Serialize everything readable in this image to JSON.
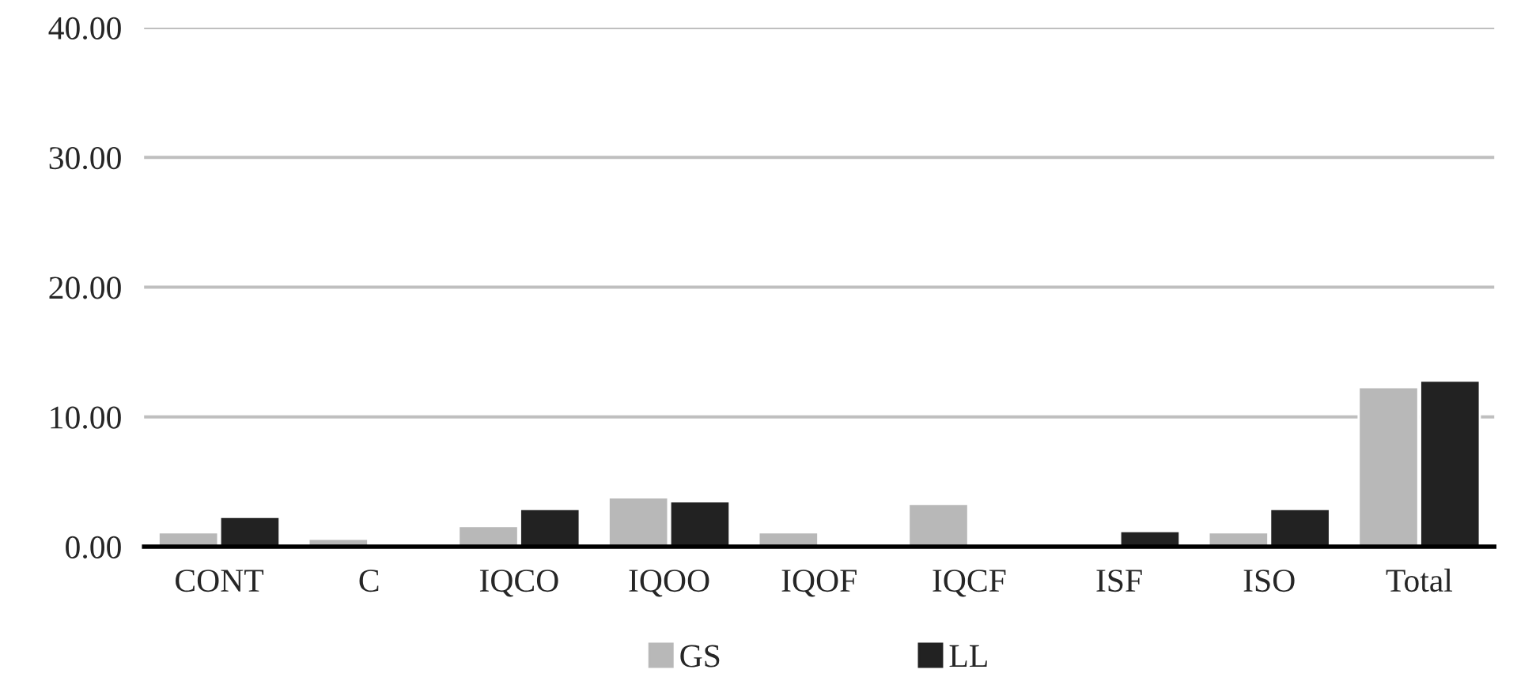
{
  "chart_data": {
    "type": "bar",
    "categories": [
      "CONT",
      "C",
      "IQCO",
      "IQOO",
      "IQOF",
      "IQCF",
      "ISF",
      "ISO",
      "Total"
    ],
    "series": [
      {
        "name": "GS",
        "color": "#b8b8b8",
        "values": [
          1.1,
          0.6,
          1.6,
          3.8,
          1.1,
          3.3,
          null,
          1.1,
          12.3
        ]
      },
      {
        "name": "LL",
        "color": "#222222",
        "values": [
          2.3,
          null,
          2.9,
          3.5,
          null,
          null,
          1.2,
          2.9,
          12.8
        ]
      }
    ],
    "ylim": [
      0,
      40
    ],
    "yticks": [
      {
        "value": 0,
        "label": "0.00"
      },
      {
        "value": 10,
        "label": "10.00"
      },
      {
        "value": 20,
        "label": "20.00"
      },
      {
        "value": 30,
        "label": "30.00"
      },
      {
        "value": 40,
        "label": "40.00"
      }
    ],
    "grid": "y",
    "legend": "bottom"
  }
}
